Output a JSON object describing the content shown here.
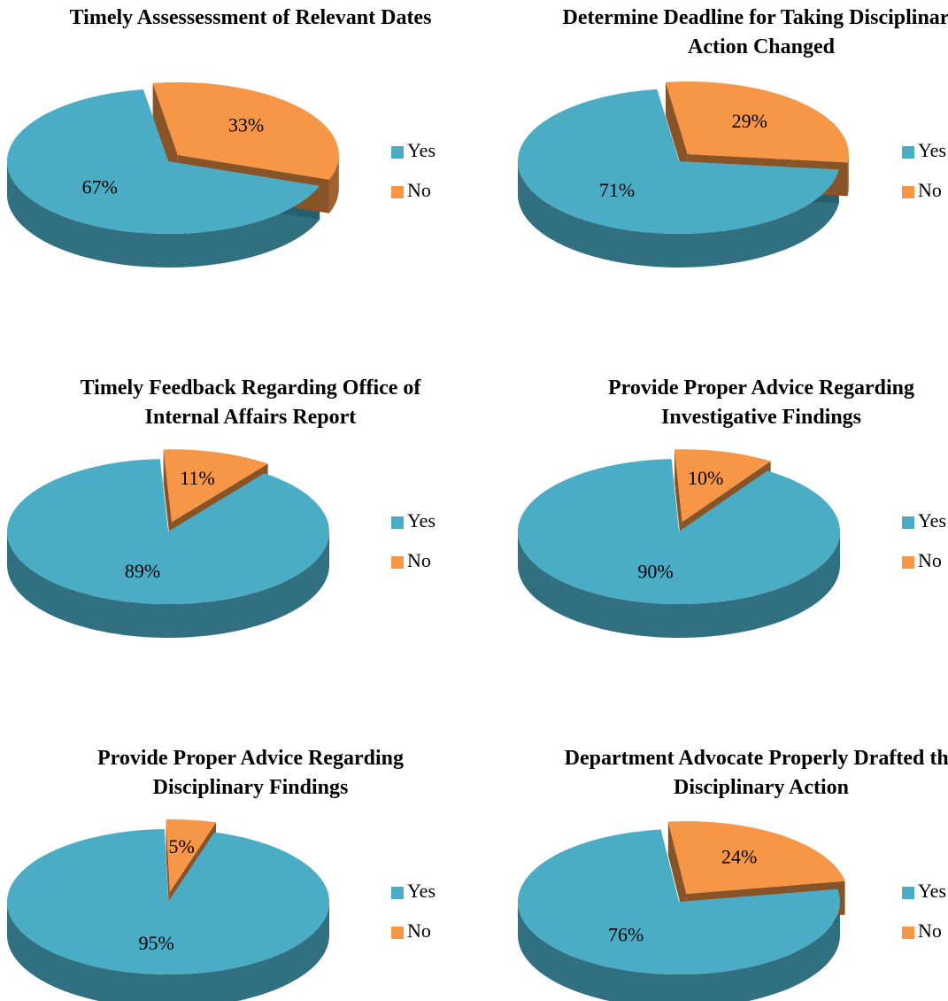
{
  "chart_data": [
    {
      "type": "pie",
      "title": "Timely Assessessment of Relevant Dates",
      "categories": [
        "Yes",
        "No"
      ],
      "values": [
        67,
        33
      ],
      "value_labels": [
        "67%",
        "33%"
      ],
      "colors": [
        "#4bacc6",
        "#f79646"
      ]
    },
    {
      "type": "pie",
      "title": "Determine Deadline for Taking Disciplinary Action Changed",
      "categories": [
        "Yes",
        "No"
      ],
      "values": [
        71,
        29
      ],
      "value_labels": [
        "71%",
        "29%"
      ],
      "colors": [
        "#4bacc6",
        "#f79646"
      ]
    },
    {
      "type": "pie",
      "title": "Timely Feedback Regarding Office of Internal Affairs Report",
      "categories": [
        "Yes",
        "No"
      ],
      "values": [
        89,
        11
      ],
      "value_labels": [
        "89%",
        "11%"
      ],
      "colors": [
        "#4bacc6",
        "#f79646"
      ]
    },
    {
      "type": "pie",
      "title": "Provide Proper Advice Regarding Investigative Findings",
      "categories": [
        "Yes",
        "No"
      ],
      "values": [
        90,
        10
      ],
      "value_labels": [
        "90%",
        "10%"
      ],
      "colors": [
        "#4bacc6",
        "#f79646"
      ]
    },
    {
      "type": "pie",
      "title": "Provide Proper Advice Regarding Disciplinary Findings",
      "categories": [
        "Yes",
        "No"
      ],
      "values": [
        95,
        5
      ],
      "value_labels": [
        "95%",
        "5%"
      ],
      "colors": [
        "#4bacc6",
        "#f79646"
      ]
    },
    {
      "type": "pie",
      "title": "Department Advocate Properly Drafted the Disciplinary Action",
      "categories": [
        "Yes",
        "No"
      ],
      "values": [
        76,
        24
      ],
      "value_labels": [
        "76%",
        "24%"
      ],
      "colors": [
        "#4bacc6",
        "#f79646"
      ]
    }
  ]
}
